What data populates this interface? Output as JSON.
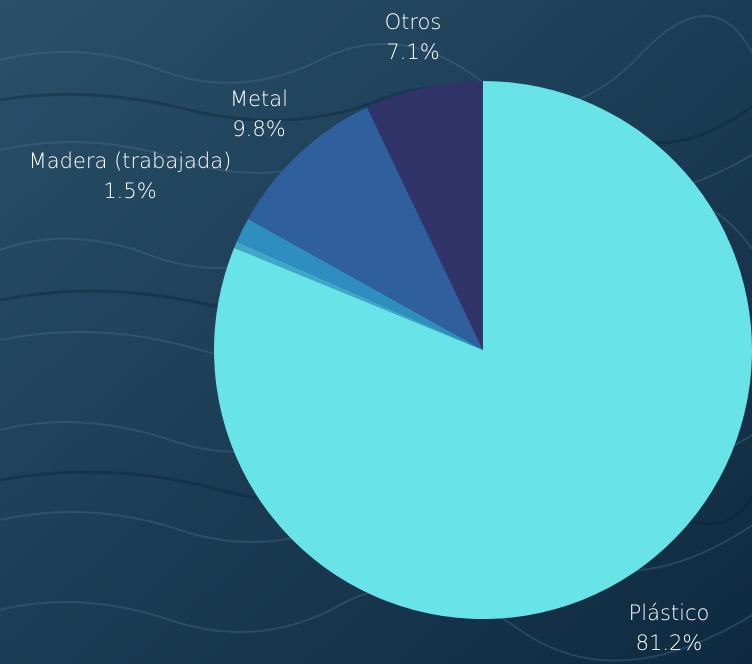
{
  "chart_data": {
    "type": "pie",
    "title": "",
    "slices": [
      {
        "label": "Plástico",
        "value": 81.2,
        "display": "81.2%",
        "color": "#68e3e8"
      },
      {
        "label": "",
        "value": 0.4,
        "display": "",
        "color": "#3fa7c9"
      },
      {
        "label": "Madera (trabajada)",
        "value": 1.5,
        "display": "1.5%",
        "color": "#2d8ebf"
      },
      {
        "label": "Metal",
        "value": 9.8,
        "display": "9.8%",
        "color": "#2f5f9c"
      },
      {
        "label": "Otros",
        "value": 7.1,
        "display": "7.1%",
        "color": "#303468"
      }
    ],
    "start_angle_deg": 0,
    "direction": "clockwise",
    "background": "ocean-water-photo"
  }
}
